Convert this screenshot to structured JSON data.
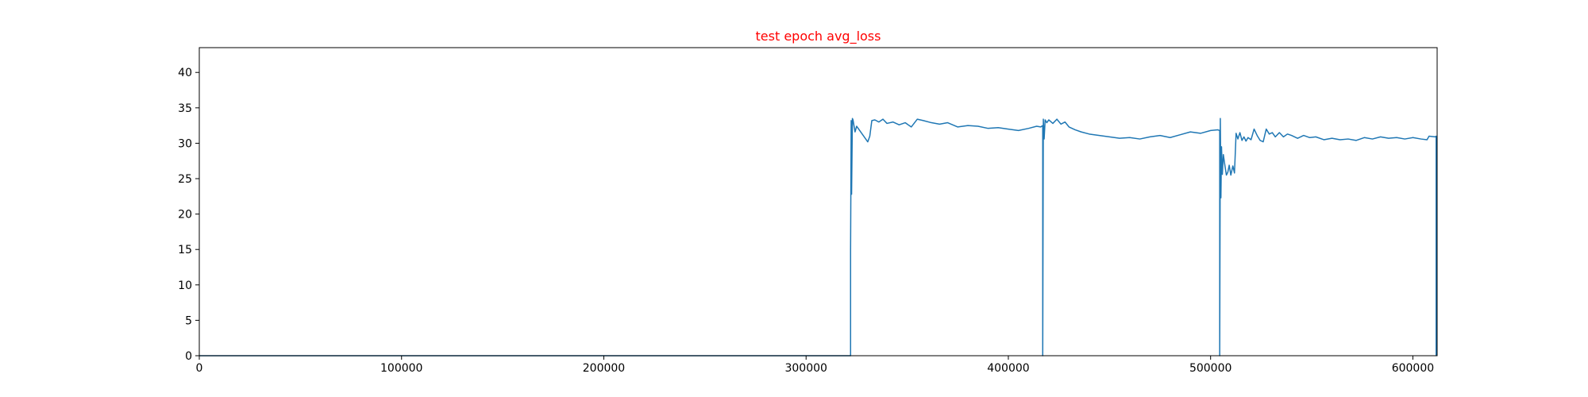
{
  "chart_data": {
    "type": "line",
    "title": "test epoch avg_loss",
    "xlabel": "",
    "ylabel": "",
    "xlim": [
      0,
      612000
    ],
    "ylim": [
      0,
      43.5
    ],
    "xticks": [
      0,
      100000,
      200000,
      300000,
      400000,
      500000,
      600000
    ],
    "yticks": [
      0,
      5,
      10,
      15,
      20,
      25,
      30,
      35,
      40
    ],
    "grid": false,
    "legend": "none",
    "series": [
      {
        "color": "#1f77b4",
        "x": [
          0,
          322000,
          322000,
          322300,
          322500,
          322900,
          323200,
          323500,
          324200,
          325000,
          326000,
          327500,
          329000,
          330500,
          331500,
          332500,
          334000,
          336000,
          338000,
          340000,
          343000,
          346000,
          349000,
          352000,
          355000,
          358000,
          362000,
          366000,
          370000,
          375000,
          380000,
          385000,
          390000,
          395000,
          400000,
          405000,
          410000,
          414000,
          416000,
          417000,
          417000,
          417300,
          417700,
          418200,
          419000,
          420000,
          422000,
          424000,
          426000,
          428000,
          430000,
          433000,
          436000,
          440000,
          445000,
          450000,
          455000,
          460000,
          465000,
          470000,
          475000,
          480000,
          485000,
          490000,
          495000,
          500000,
          503500,
          504500,
          504500,
          504800,
          505100,
          505400,
          505800,
          506300,
          507000,
          507800,
          508500,
          509200,
          510000,
          511000,
          511800,
          512600,
          513500,
          514500,
          515500,
          516500,
          517500,
          518500,
          520000,
          521500,
          523000,
          524500,
          526000,
          527500,
          529000,
          530500,
          532000,
          534000,
          536000,
          538000,
          540000,
          543000,
          546000,
          549000,
          552000,
          556000,
          560000,
          564000,
          568000,
          572000,
          576000,
          580000,
          584000,
          588000,
          592000,
          596000,
          600000,
          604000,
          607000,
          608000,
          611000,
          611500,
          611500
        ],
        "y": [
          0,
          0,
          15,
          33.2,
          22.8,
          33.5,
          33.3,
          32.8,
          31.6,
          32.4,
          32.0,
          31.4,
          30.8,
          30.2,
          31.0,
          33.2,
          33.3,
          33.0,
          33.4,
          32.8,
          33.0,
          32.6,
          32.9,
          32.3,
          33.4,
          33.2,
          32.9,
          32.7,
          32.9,
          32.3,
          32.5,
          32.4,
          32.1,
          32.2,
          32.0,
          31.8,
          32.1,
          32.4,
          32.3,
          32.5,
          0,
          33.4,
          30.6,
          33.3,
          32.9,
          33.3,
          32.8,
          33.4,
          32.7,
          33.0,
          32.3,
          31.9,
          31.6,
          31.3,
          31.1,
          30.9,
          30.7,
          30.8,
          30.6,
          30.9,
          31.1,
          30.8,
          31.2,
          31.6,
          31.4,
          31.8,
          31.9,
          31.8,
          0,
          33.5,
          22.3,
          29.5,
          25.6,
          28.4,
          27.0,
          25.5,
          25.9,
          26.9,
          25.5,
          26.8,
          25.8,
          31.4,
          30.6,
          31.5,
          30.4,
          30.9,
          30.3,
          30.8,
          30.5,
          32.0,
          31.1,
          30.4,
          30.2,
          32.0,
          31.3,
          31.5,
          30.9,
          31.5,
          30.9,
          31.3,
          31.1,
          30.7,
          31.1,
          30.8,
          30.9,
          30.5,
          30.7,
          30.5,
          30.6,
          30.4,
          30.8,
          30.6,
          30.9,
          30.7,
          30.8,
          30.6,
          30.8,
          30.6,
          30.5,
          31.0,
          30.9,
          31.0,
          0
        ]
      }
    ]
  },
  "colors": {
    "line": "#1f77b4",
    "title": "#ff0000",
    "axes": "#000000"
  }
}
